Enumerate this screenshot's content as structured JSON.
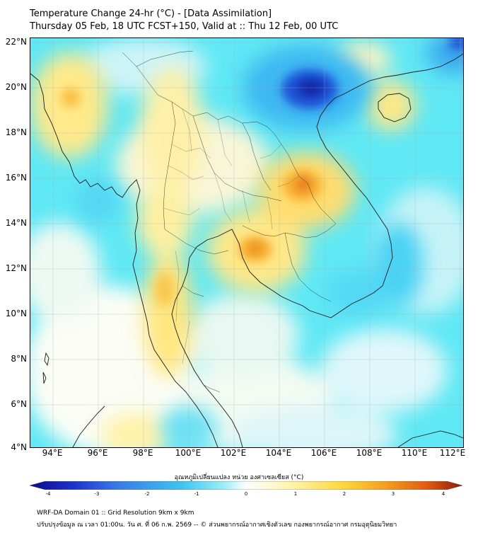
{
  "title": {
    "line1": "Temperature Change 24-hr (°C) - [Data Assimilation]",
    "line2": "Thursday 05 Feb, 18 UTC FCST+150, Valid at :: Thu 12 Feb, 00 UTC"
  },
  "axes": {
    "lat_labels": [
      "22°N",
      "20°N",
      "18°N",
      "16°N",
      "14°N",
      "12°N",
      "10°N",
      "8°N",
      "6°N",
      "4°N"
    ],
    "lon_labels": [
      "94°E",
      "96°E",
      "98°E",
      "100°E",
      "102°E",
      "104°E",
      "106°E",
      "108°E",
      "110°E",
      "112°E"
    ]
  },
  "colorbar": {
    "title": "อุณหภูมิเปลี่ยนแปลง หน่วย องศาเซลเซียส (°C)",
    "ticks": [
      "-4",
      "-3",
      "-2",
      "-1",
      "0",
      "1",
      "2",
      "3",
      "4"
    ],
    "colors": [
      "#0a0a8c",
      "#1e32c8",
      "#3a78e8",
      "#3cc4f0",
      "#9eeef8",
      "#ffffff",
      "#fff4b0",
      "#ffd840",
      "#f5a020",
      "#e05a10",
      "#8c1a0a"
    ]
  },
  "footer": {
    "line1": "WRF-DA Domain 01 :: Grid Resolution 9km x 9km",
    "line2": "ปรับปรุงข้อมูล ณ เวลา 01:00น. วัน ศ. ที่ 06 ก.พ. 2569 -- © ส่วนพยากรณ์อากาศเชิงตัวเลข กองพยากรณ์อากาศ กรมอุตุนิยมวิทยา"
  }
}
